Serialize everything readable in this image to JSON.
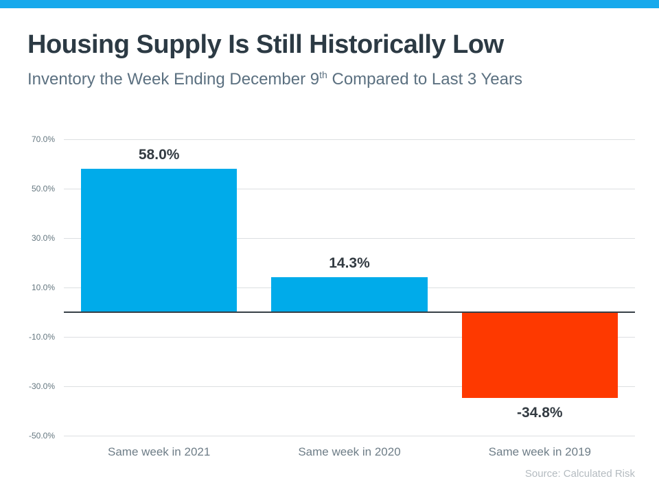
{
  "header": {
    "accent_color": "#17a9ec",
    "title": "Housing Supply Is Still Historically Low",
    "subtitle_prefix": "Inventory the Week Ending December 9",
    "subtitle_sup": "th",
    "subtitle_suffix": " Compared to Last 3 Years"
  },
  "chart_data": {
    "type": "bar",
    "title": "Housing Supply Is Still Historically Low",
    "subtitle": "Inventory the Week Ending December 9th Compared to Last 3 Years",
    "categories": [
      "Same week in 2021",
      "Same week in 2020",
      "Same week in 2019"
    ],
    "values": [
      58.0,
      14.3,
      -34.8
    ],
    "value_labels": [
      "58.0%",
      "14.3%",
      "-34.8%"
    ],
    "bar_colors": [
      "#00abea",
      "#00abea",
      "#fe3900"
    ],
    "yticks": [
      70,
      50,
      30,
      10,
      -10,
      -30,
      -50
    ],
    "ytick_labels": [
      "70.0%",
      "50.0%",
      "30.0%",
      "10.0%",
      "-10.0%",
      "-30.0%",
      "-50.0%"
    ],
    "ylim": [
      -50,
      70
    ],
    "xlabel": "",
    "ylabel": "",
    "grid": true,
    "zero_line": 0,
    "legend": "none",
    "bar_width_ratio": 0.82
  },
  "footer": {
    "source": "Source: Calculated Risk"
  }
}
